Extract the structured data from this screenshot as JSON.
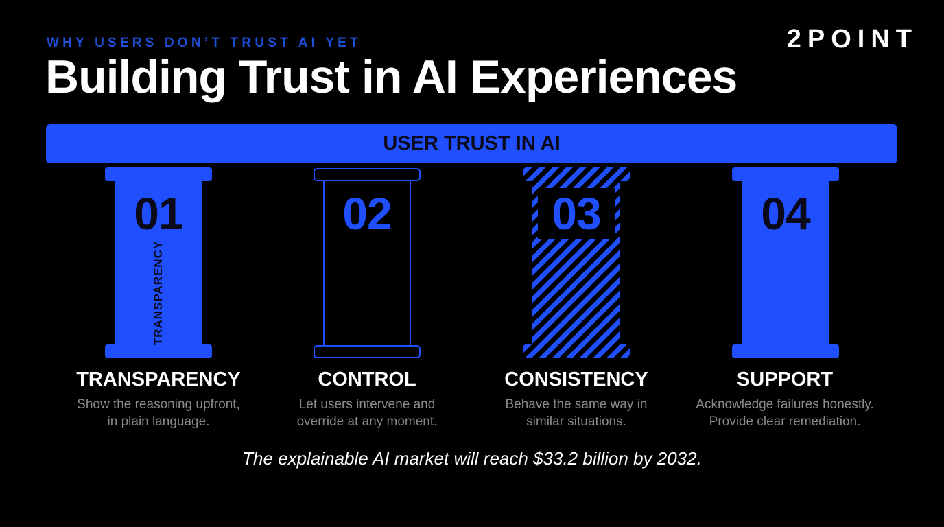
{
  "eyebrow": "WHY USERS DON’T TRUST AI YET",
  "title": "Building Trust in AI Experiences",
  "logo": "2POINT",
  "beam_label": "USER TRUST IN AI",
  "colors": {
    "accent": "#1f4fff",
    "background": "#000000",
    "text": "#ffffff",
    "muted": "#8a8a8a"
  },
  "pillars": [
    {
      "number": "01",
      "vertical_label": "TRANSPARENCY",
      "style": "solid",
      "title": "TRANSPARENCY",
      "desc_line1": "Show the reasoning upfront,",
      "desc_line2": "in plain language."
    },
    {
      "number": "02",
      "style": "outline",
      "title": "CONTROL",
      "desc_line1": "Let users intervene and",
      "desc_line2": "override at any moment."
    },
    {
      "number": "03",
      "style": "hatched",
      "title": "CONSISTENCY",
      "desc_line1": "Behave the same way in",
      "desc_line2": "similar situations."
    },
    {
      "number": "04",
      "style": "solid",
      "title": "SUPPORT",
      "desc_line1": "Acknowledge failures honestly.",
      "desc_line2": "Provide clear remediation."
    }
  ],
  "footer": "The explainable AI market will reach $33.2 billion by 2032."
}
